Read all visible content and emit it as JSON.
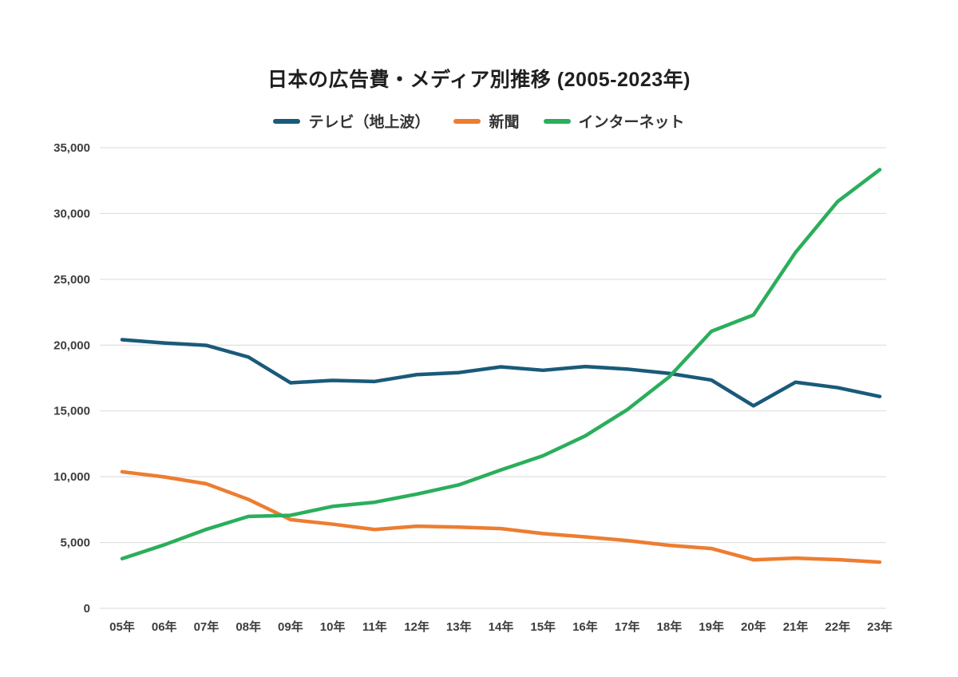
{
  "title": "日本の広告費・メディア別推移 (2005-2023年)",
  "chart_data": {
    "type": "line",
    "title": "日本の広告費・メディア別推移 (2005-2023年)",
    "categories": [
      "05年",
      "06年",
      "07年",
      "08年",
      "09年",
      "10年",
      "11年",
      "12年",
      "13年",
      "14年",
      "15年",
      "16年",
      "17年",
      "18年",
      "19年",
      "20年",
      "21年",
      "22年",
      "23年"
    ],
    "series": [
      {
        "name": "テレビ（地上波）",
        "color": "#1A5A7A",
        "values": [
          20411,
          20161,
          19981,
          19092,
          17139,
          17321,
          17237,
          17757,
          17913,
          18347,
          18088,
          18374,
          18178,
          17848,
          17345,
          15386,
          17184,
          16768,
          16095
        ]
      },
      {
        "name": "新聞",
        "color": "#ED7D31",
        "values": [
          10377,
          9986,
          9462,
          8276,
          6739,
          6396,
          5990,
          6242,
          6170,
          6057,
          5679,
          5431,
          5147,
          4784,
          4547,
          3688,
          3815,
          3697,
          3512
        ]
      },
      {
        "name": "インターネット",
        "color": "#2BAE5C",
        "values": [
          3777,
          4826,
          6003,
          6983,
          7069,
          7747,
          8062,
          8680,
          9381,
          10519,
          11594,
          13100,
          15094,
          17589,
          21048,
          22290,
          27052,
          30912,
          33330
        ]
      }
    ],
    "ylim": [
      0,
      35000
    ],
    "ytick_step": 5000,
    "grid": true,
    "legend_position": "top",
    "xlabel": "",
    "ylabel": "",
    "gridline_color": "#d9d9d9"
  }
}
